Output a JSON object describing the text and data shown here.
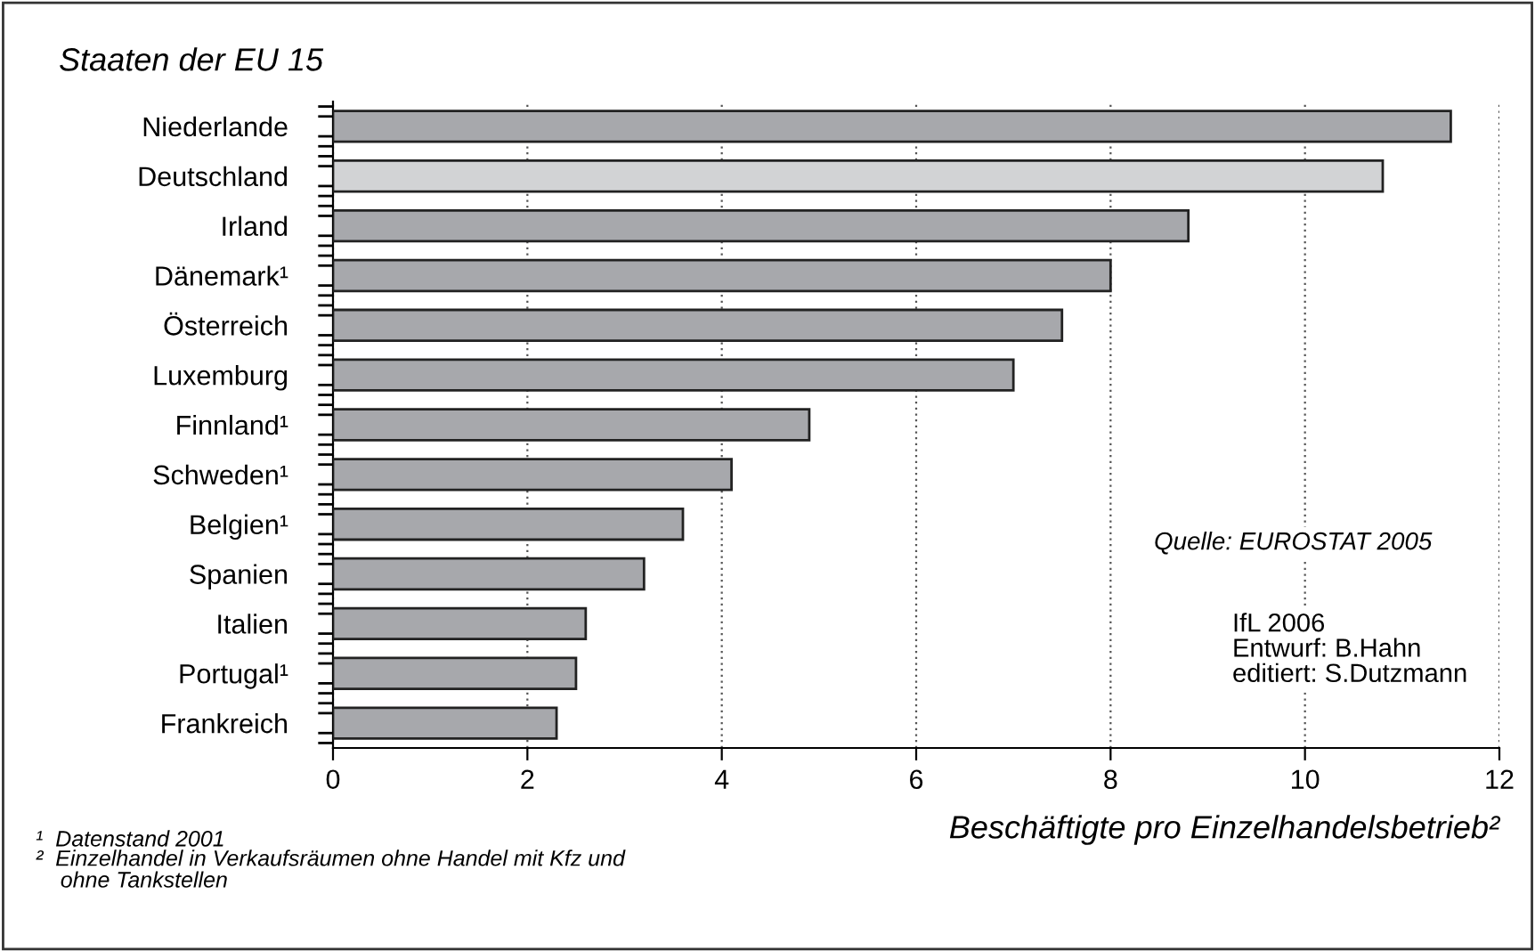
{
  "chart_data": {
    "type": "bar",
    "orientation": "horizontal",
    "title": "Staaten der EU 15",
    "categories": [
      "Niederlande",
      "Deutschland",
      "Irland",
      "Dänemark¹",
      "Österreich",
      "Luxemburg",
      "Finnland¹",
      "Schweden¹",
      "Belgien¹",
      "Spanien",
      "Italien",
      "Portugal¹",
      "Frankreich"
    ],
    "values": [
      11.5,
      10.8,
      8.8,
      8.0,
      7.5,
      7.0,
      4.9,
      4.1,
      3.6,
      3.2,
      2.6,
      2.5,
      2.3
    ],
    "colors": [
      "#a7a8ac",
      "#d2d3d5",
      "#a7a8ac",
      "#a7a8ac",
      "#a7a8ac",
      "#a7a8ac",
      "#a7a8ac",
      "#a7a8ac",
      "#a7a8ac",
      "#a7a8ac",
      "#a7a8ac",
      "#a7a8ac",
      "#a7a8ac"
    ],
    "xlim": [
      0,
      12
    ],
    "xticks": [
      0,
      2,
      4,
      6,
      8,
      10,
      12
    ],
    "grid": "x",
    "xlabel": "Beschäftigte pro Einzelhandelsbetrieb²",
    "annotations": [
      "Quelle: EUROSTAT 2005",
      "IfL 2006\nEntwurf: B.Hahn\neditiert: S.Dutzmann",
      "¹  Datenstand 2001",
      "²  Einzelhandel in Verkaufsräumen ohne Handel mit Kfz und\n    ohne Tankstellen"
    ]
  }
}
